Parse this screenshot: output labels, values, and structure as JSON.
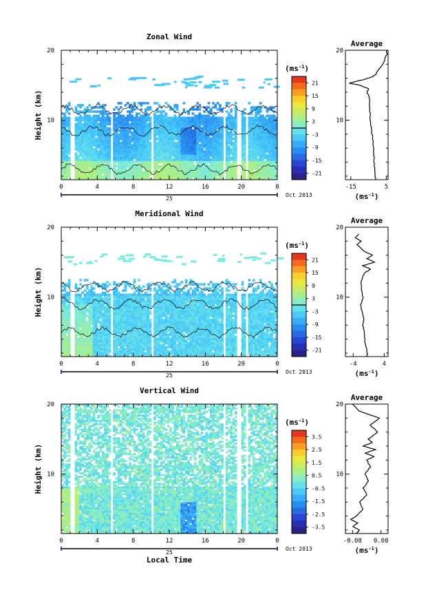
{
  "chart_data": [
    {
      "type": "heatmap",
      "title": "Zonal Wind",
      "ylabel": "Height (km)",
      "yticks": [
        "20",
        "10"
      ],
      "xticks": [
        "0",
        "4",
        "8",
        "12",
        "16",
        "20",
        "0"
      ],
      "date_label": "25",
      "month_label": "Oct 2013",
      "xlim": [
        0,
        24
      ],
      "ylim": [
        1.5,
        20
      ],
      "colorbar": {
        "unit": "(ms",
        "unit_sup": "-1",
        "unit_close": ")",
        "ticks": [
          "21",
          "15",
          "9",
          "3",
          "-3",
          "-9",
          "-15",
          "-21"
        ],
        "range": [
          -24,
          24
        ]
      },
      "average": {
        "title": "Average",
        "yticks": [
          "20",
          "10"
        ],
        "xticks": [
          "-15",
          "5"
        ],
        "xlim": [
          -18,
          6
        ],
        "xunit": "(ms",
        "xunit_sup": "-1",
        "xunit_close": ")",
        "profile": [
          [
            1.5,
            -1
          ],
          [
            2,
            -1.2
          ],
          [
            3,
            -1.5
          ],
          [
            4,
            -1.8
          ],
          [
            5,
            -2
          ],
          [
            6,
            -2.2
          ],
          [
            7,
            -2.5
          ],
          [
            8,
            -3
          ],
          [
            9,
            -3.5
          ],
          [
            10,
            -4
          ],
          [
            11,
            -4.2
          ],
          [
            12,
            -4.5
          ],
          [
            13,
            -4.2
          ],
          [
            13.5,
            -5
          ],
          [
            14,
            -6
          ],
          [
            14.5,
            -5
          ],
          [
            15,
            -10
          ],
          [
            15.3,
            -16
          ],
          [
            15.8,
            -8
          ],
          [
            16.2,
            -3
          ],
          [
            16.5,
            -1
          ],
          [
            17,
            0
          ],
          [
            17.5,
            1.5
          ],
          [
            18,
            3
          ],
          [
            18.5,
            4
          ],
          [
            19,
            4.5
          ],
          [
            19.5,
            5.5
          ],
          [
            20,
            5
          ]
        ]
      }
    },
    {
      "type": "heatmap",
      "title": "Meridional Wind",
      "ylabel": "Height (km)",
      "yticks": [
        "20",
        "10"
      ],
      "xticks": [
        "0",
        "4",
        "8",
        "12",
        "16",
        "20",
        "0"
      ],
      "date_label": "25",
      "month_label": "Oct 2013",
      "xlim": [
        0,
        24
      ],
      "ylim": [
        1.5,
        20
      ],
      "colorbar": {
        "unit": "(ms",
        "unit_sup": "-1",
        "unit_close": ")",
        "ticks": [
          "21",
          "15",
          "9",
          "3",
          "-3",
          "-9",
          "-15",
          "-21"
        ],
        "range": [
          -24,
          24
        ]
      },
      "average": {
        "title": "Average",
        "yticks": [
          "20",
          "10"
        ],
        "xticks": [
          "-4",
          "4"
        ],
        "xlim": [
          -6,
          5
        ],
        "xunit": "(ms",
        "xunit_sup": "-1",
        "xunit_close": ")",
        "profile": [
          [
            1.5,
            -0.5
          ],
          [
            2,
            -0.3
          ],
          [
            3,
            -0.8
          ],
          [
            4,
            -1
          ],
          [
            5,
            -1.2
          ],
          [
            6,
            -1.5
          ],
          [
            7,
            -1.2
          ],
          [
            8,
            -1.8
          ],
          [
            9,
            -2
          ],
          [
            10,
            -1.5
          ],
          [
            11,
            -1.8
          ],
          [
            12,
            -2
          ],
          [
            13,
            -1.5
          ],
          [
            13.5,
            -1
          ],
          [
            14,
            0.5
          ],
          [
            14.5,
            -1.5
          ],
          [
            15,
            1.5
          ],
          [
            15.5,
            -0.5
          ],
          [
            16,
            1
          ],
          [
            16.5,
            -1
          ],
          [
            17,
            -2
          ],
          [
            17.5,
            -3
          ],
          [
            18,
            -2
          ],
          [
            18.5,
            -3.5
          ],
          [
            19,
            -2.5
          ]
        ]
      }
    },
    {
      "type": "heatmap",
      "title": "Vertical Wind",
      "ylabel": "Height (km)",
      "xlabel": "Local Time",
      "yticks": [
        "20",
        "10"
      ],
      "xticks": [
        "0",
        "4",
        "8",
        "12",
        "16",
        "20",
        "0"
      ],
      "date_label": "25",
      "month_label": "Oct 2013",
      "xlim": [
        0,
        24
      ],
      "ylim": [
        1.5,
        20
      ],
      "colorbar": {
        "unit": "(ms",
        "unit_sup": "-1",
        "unit_close": ")",
        "ticks": [
          "3.5",
          "2.5",
          "1.5",
          "0.5",
          "-0.5",
          "-1.5",
          "-2.5",
          "-3.5"
        ],
        "range": [
          -4,
          4
        ]
      },
      "average": {
        "title": "Average",
        "yticks": [
          "20",
          "10"
        ],
        "xticks": [
          "-0.08",
          "0.08"
        ],
        "xlim": [
          -0.12,
          0.12
        ],
        "xunit": "(ms",
        "xunit_sup": "-1",
        "xunit_close": ")",
        "profile": [
          [
            1.5,
            -0.06
          ],
          [
            2,
            -0.04
          ],
          [
            2.5,
            -0.08
          ],
          [
            3,
            -0.05
          ],
          [
            3.5,
            -0.09
          ],
          [
            4,
            -0.06
          ],
          [
            5,
            -0.02
          ],
          [
            6,
            -0.04
          ],
          [
            7,
            0.0
          ],
          [
            8,
            -0.02
          ],
          [
            9,
            0.01
          ],
          [
            10,
            -0.01
          ],
          [
            11,
            0.02
          ],
          [
            12,
            0.0
          ],
          [
            12.5,
            0.04
          ],
          [
            13,
            -0.01
          ],
          [
            13.5,
            0.05
          ],
          [
            14,
            -0.02
          ],
          [
            14.5,
            0.03
          ],
          [
            15,
            0.01
          ],
          [
            16,
            0.06
          ],
          [
            17,
            0.02
          ],
          [
            18,
            0.07
          ],
          [
            19,
            -0.04
          ],
          [
            20,
            -0.08
          ]
        ]
      }
    }
  ]
}
